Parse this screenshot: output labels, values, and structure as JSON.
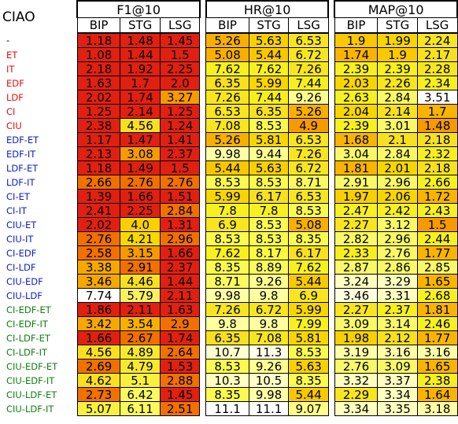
{
  "corner_label": "CIAO",
  "metrics": [
    "F1@10",
    "HR@10",
    "MAP@10"
  ],
  "submetrics": [
    "BIP",
    "STG",
    "LSG"
  ],
  "colors": {
    "label_red": "#e01010",
    "label_blue": "#1020c8",
    "label_green": "#108010",
    "label_black": "#000000"
  },
  "rows": [
    {
      "label": "-",
      "color": "#000000",
      "values": [
        "1.18",
        "1.48",
        "1.45",
        "5.26",
        "5.63",
        "6.53",
        "1.9",
        "1.99",
        "2.24"
      ],
      "bg": [
        "#e02010",
        "#e02010",
        "#e02010",
        "#f7b000",
        "#f7d000",
        "#f7e520",
        "#f8c800",
        "#f7d600",
        "#f7e520"
      ]
    },
    {
      "label": "ET",
      "color": "#e01010",
      "values": [
        "1.08",
        "1.44",
        "1.5",
        "5.08",
        "5.44",
        "6.72",
        "1.74",
        "1.9",
        "2.17"
      ],
      "bg": [
        "#e02010",
        "#e02010",
        "#e02010",
        "#f7b000",
        "#f7c800",
        "#f7e520",
        "#f8b400",
        "#f8c800",
        "#f7e020"
      ]
    },
    {
      "label": "IT",
      "color": "#e01010",
      "values": [
        "2.18",
        "1.92",
        "2.25",
        "7.62",
        "7.62",
        "7.26",
        "2.39",
        "2.39",
        "2.28"
      ],
      "bg": [
        "#e02010",
        "#e02010",
        "#e02010",
        "#f7f020",
        "#f7f020",
        "#f7e520",
        "#f7f020",
        "#f7f020",
        "#f7e520"
      ]
    },
    {
      "label": "EDF",
      "color": "#e01010",
      "values": [
        "1.63",
        "1.7",
        "2.0",
        "6.35",
        "5.99",
        "7.44",
        "2.03",
        "2.26",
        "2.34"
      ],
      "bg": [
        "#e02010",
        "#e02010",
        "#e02010",
        "#f7e020",
        "#f7d600",
        "#f7ee20",
        "#f7d600",
        "#f7e520",
        "#f7ee20"
      ]
    },
    {
      "label": "LDF",
      "color": "#e01010",
      "values": [
        "2.02",
        "1.74",
        "3.27",
        "7.26",
        "7.44",
        "9.26",
        "2.63",
        "2.84",
        "3.51"
      ],
      "bg": [
        "#e02010",
        "#e02010",
        "#f59a00",
        "#f7e520",
        "#f7ee20",
        "#ffff90",
        "#f7f020",
        "#f8f868",
        "#ffffff"
      ]
    },
    {
      "label": "CI",
      "color": "#e01010",
      "values": [
        "1.25",
        "2.14",
        "1.25",
        "6.53",
        "6.35",
        "5.26",
        "2.04",
        "2.14",
        "1.7"
      ],
      "bg": [
        "#e02010",
        "#e02010",
        "#e02010",
        "#f7e520",
        "#f7e020",
        "#f7b000",
        "#f7d600",
        "#f7e020",
        "#f8b400"
      ]
    },
    {
      "label": "CIU",
      "color": "#e01010",
      "values": [
        "2.38",
        "4.56",
        "1.24",
        "7.08",
        "8.53",
        "4.9",
        "2.39",
        "3.01",
        "1.48"
      ],
      "bg": [
        "#e02010",
        "#f8e020",
        "#e02010",
        "#f7e520",
        "#fafa50",
        "#f59a00",
        "#f7f020",
        "#f8f868",
        "#f59a00"
      ]
    },
    {
      "label": "EDF-ET",
      "color": "#1020c8",
      "values": [
        "1.17",
        "1.47",
        "1.41",
        "5.26",
        "5.81",
        "6.53",
        "1.68",
        "2.1",
        "2.18"
      ],
      "bg": [
        "#e02010",
        "#e02010",
        "#e02010",
        "#f7b000",
        "#f7d600",
        "#f7e520",
        "#f8b400",
        "#f7e020",
        "#f7e020"
      ]
    },
    {
      "label": "EDF-IT",
      "color": "#1020c8",
      "values": [
        "2.13",
        "3.08",
        "2.37",
        "9.98",
        "9.44",
        "7.26",
        "3.04",
        "2.84",
        "2.32"
      ],
      "bg": [
        "#e02010",
        "#f59a00",
        "#e02010",
        "#ffffa8",
        "#ffff90",
        "#f7e520",
        "#f8f868",
        "#f8f868",
        "#f7ee20"
      ]
    },
    {
      "label": "LDF-ET",
      "color": "#1020c8",
      "values": [
        "1.18",
        "1.49",
        "1.5",
        "5.44",
        "5.63",
        "6.72",
        "1.81",
        "2.01",
        "2.18"
      ],
      "bg": [
        "#e02010",
        "#e02010",
        "#e02010",
        "#f7c800",
        "#f7d000",
        "#f7e520",
        "#f8b400",
        "#f7d600",
        "#f7e020"
      ]
    },
    {
      "label": "LDF-IT",
      "color": "#1020c8",
      "values": [
        "2.66",
        "2.76",
        "2.76",
        "8.53",
        "8.53",
        "8.71",
        "2.91",
        "2.96",
        "2.66"
      ],
      "bg": [
        "#f07000",
        "#f07000",
        "#f07000",
        "#fafa50",
        "#fafa50",
        "#fafa60",
        "#f8f868",
        "#f8f868",
        "#f7f020"
      ]
    },
    {
      "label": "CI-ET",
      "color": "#1020c8",
      "values": [
        "1.39",
        "1.66",
        "1.51",
        "5.99",
        "6.17",
        "6.53",
        "1.97",
        "2.06",
        "1.72"
      ],
      "bg": [
        "#e02010",
        "#e02010",
        "#e02010",
        "#f7d600",
        "#f7e020",
        "#f7e520",
        "#f7d000",
        "#f7d600",
        "#f8b400"
      ]
    },
    {
      "label": "CI-IT",
      "color": "#1020c8",
      "values": [
        "2.41",
        "2.25",
        "2.84",
        "7.8",
        "7.8",
        "8.53",
        "2.47",
        "2.42",
        "2.43"
      ],
      "bg": [
        "#e02010",
        "#e02010",
        "#f07000",
        "#f7f020",
        "#f7f020",
        "#fafa50",
        "#f7f020",
        "#f7f020",
        "#f7f020"
      ]
    },
    {
      "label": "CIU-ET",
      "color": "#1020c8",
      "values": [
        "2.02",
        "4.0",
        "1.31",
        "6.9",
        "8.53",
        "5.08",
        "2.27",
        "3.12",
        "1.5"
      ],
      "bg": [
        "#e02010",
        "#f8d000",
        "#e02010",
        "#f7e520",
        "#fafa50",
        "#f7b000",
        "#f7e520",
        "#f8f868",
        "#f59a00"
      ]
    },
    {
      "label": "CIU-IT",
      "color": "#1020c8",
      "values": [
        "2.76",
        "4.21",
        "2.96",
        "8.53",
        "8.53",
        "8.35",
        "2.82",
        "2.96",
        "2.44"
      ],
      "bg": [
        "#f07000",
        "#f8d800",
        "#f07000",
        "#fafa50",
        "#fafa50",
        "#fafa50",
        "#f8f868",
        "#f8f868",
        "#f7f020"
      ]
    },
    {
      "label": "CI-EDF",
      "color": "#1020c8",
      "values": [
        "2.58",
        "3.15",
        "1.66",
        "7.62",
        "8.17",
        "6.17",
        "2.33",
        "2.76",
        "1.77"
      ],
      "bg": [
        "#f07000",
        "#f59a00",
        "#e02010",
        "#f7f020",
        "#fafa40",
        "#f7e020",
        "#f7ee20",
        "#f8f868",
        "#f8b400"
      ]
    },
    {
      "label": "CI-LDF",
      "color": "#1020c8",
      "values": [
        "3.38",
        "2.91",
        "2.37",
        "8.35",
        "8.89",
        "7.62",
        "2.87",
        "2.86",
        "2.85"
      ],
      "bg": [
        "#f5a800",
        "#f07000",
        "#e02010",
        "#fafa50",
        "#fafa60",
        "#f7f020",
        "#f8f868",
        "#f8f868",
        "#f8f868"
      ]
    },
    {
      "label": "CIU-EDF",
      "color": "#1020c8",
      "values": [
        "3.46",
        "4.46",
        "1.44",
        "8.71",
        "9.26",
        "5.44",
        "3.24",
        "3.29",
        "1.65"
      ],
      "bg": [
        "#f5a800",
        "#f8e020",
        "#e02010",
        "#fafa60",
        "#ffff90",
        "#f7c800",
        "#ffffc0",
        "#ffffc0",
        "#f8b400"
      ]
    },
    {
      "label": "CIU-LDF",
      "color": "#1020c8",
      "values": [
        "7.74",
        "5.79",
        "2.11",
        "9.98",
        "9.8",
        "6.9",
        "3.46",
        "3.31",
        "2.68"
      ],
      "bg": [
        "#ffffff",
        "#f8f060",
        "#e02010",
        "#ffffa8",
        "#ffffa0",
        "#f7e520",
        "#ffffe0",
        "#ffffc0",
        "#f7f020"
      ]
    },
    {
      "label": "CI-EDF-ET",
      "color": "#108010",
      "values": [
        "1.86",
        "2.11",
        "1.63",
        "7.26",
        "6.72",
        "5.99",
        "2.27",
        "2.37",
        "1.81"
      ],
      "bg": [
        "#e02010",
        "#e02010",
        "#e02010",
        "#f7e520",
        "#f7e520",
        "#f7d600",
        "#f7e520",
        "#f7ee20",
        "#f8b400"
      ]
    },
    {
      "label": "CI-EDF-IT",
      "color": "#108010",
      "values": [
        "3.42",
        "3.54",
        "2.9",
        "9.8",
        "9.8",
        "7.99",
        "3.09",
        "3.14",
        "2.46"
      ],
      "bg": [
        "#f5a800",
        "#f5b000",
        "#f07000",
        "#ffffa0",
        "#ffffa0",
        "#f7f020",
        "#f8f868",
        "#f8f868",
        "#f7f020"
      ]
    },
    {
      "label": "CI-LDF-ET",
      "color": "#108010",
      "values": [
        "1.66",
        "2.67",
        "1.74",
        "6.35",
        "7.08",
        "5.81",
        "1.98",
        "2.12",
        "1.77"
      ],
      "bg": [
        "#e02010",
        "#f07000",
        "#e02010",
        "#f7e020",
        "#f7e520",
        "#f7d600",
        "#f7d000",
        "#f7e020",
        "#f8b400"
      ]
    },
    {
      "label": "CI-LDF-IT",
      "color": "#108010",
      "values": [
        "4.56",
        "4.89",
        "2.64",
        "10.7",
        "11.3",
        "8.53",
        "3.19",
        "3.16",
        "3.16"
      ],
      "bg": [
        "#f8e020",
        "#f8e830",
        "#f07000",
        "#ffffd0",
        "#ffffe8",
        "#fafa50",
        "#ffffa8",
        "#ffffa8",
        "#ffffa8"
      ]
    },
    {
      "label": "CIU-EDF-ET",
      "color": "#108010",
      "values": [
        "2.69",
        "4.79",
        "1.53",
        "8.53",
        "9.26",
        "5.63",
        "2.76",
        "3.09",
        "1.65"
      ],
      "bg": [
        "#f07000",
        "#f8e830",
        "#e02010",
        "#fafa50",
        "#ffff90",
        "#f7d000",
        "#f8f868",
        "#f8f868",
        "#f8b400"
      ]
    },
    {
      "label": "CIU-EDF-IT",
      "color": "#108010",
      "values": [
        "4.62",
        "5.1",
        "2.88",
        "10.3",
        "10.5",
        "8.35",
        "3.32",
        "3.37",
        "2.38"
      ],
      "bg": [
        "#f8e020",
        "#f8f040",
        "#f07000",
        "#ffffc0",
        "#ffffc8",
        "#fafa50",
        "#ffffc0",
        "#ffffc0",
        "#f7ee20"
      ]
    },
    {
      "label": "CIU-LDF-ET",
      "color": "#108010",
      "values": [
        "2.73",
        "6.42",
        "1.45",
        "8.35",
        "9.98",
        "5.44",
        "2.29",
        "3.34",
        "1.64"
      ],
      "bg": [
        "#f07000",
        "#fafa60",
        "#e02010",
        "#fafa50",
        "#ffffa8",
        "#f7c800",
        "#f7e520",
        "#ffffc0",
        "#f8b400"
      ]
    },
    {
      "label": "CIU-LDF-IT",
      "color": "#108010",
      "values": [
        "5.07",
        "6.11",
        "2.51",
        "11.1",
        "11.1",
        "9.07",
        "3.34",
        "3.35",
        "3.18"
      ],
      "bg": [
        "#f8f040",
        "#fafa60",
        "#f07000",
        "#ffffff",
        "#ffffff",
        "#ffff88",
        "#ffffc0",
        "#ffffc0",
        "#ffffa8"
      ]
    }
  ]
}
